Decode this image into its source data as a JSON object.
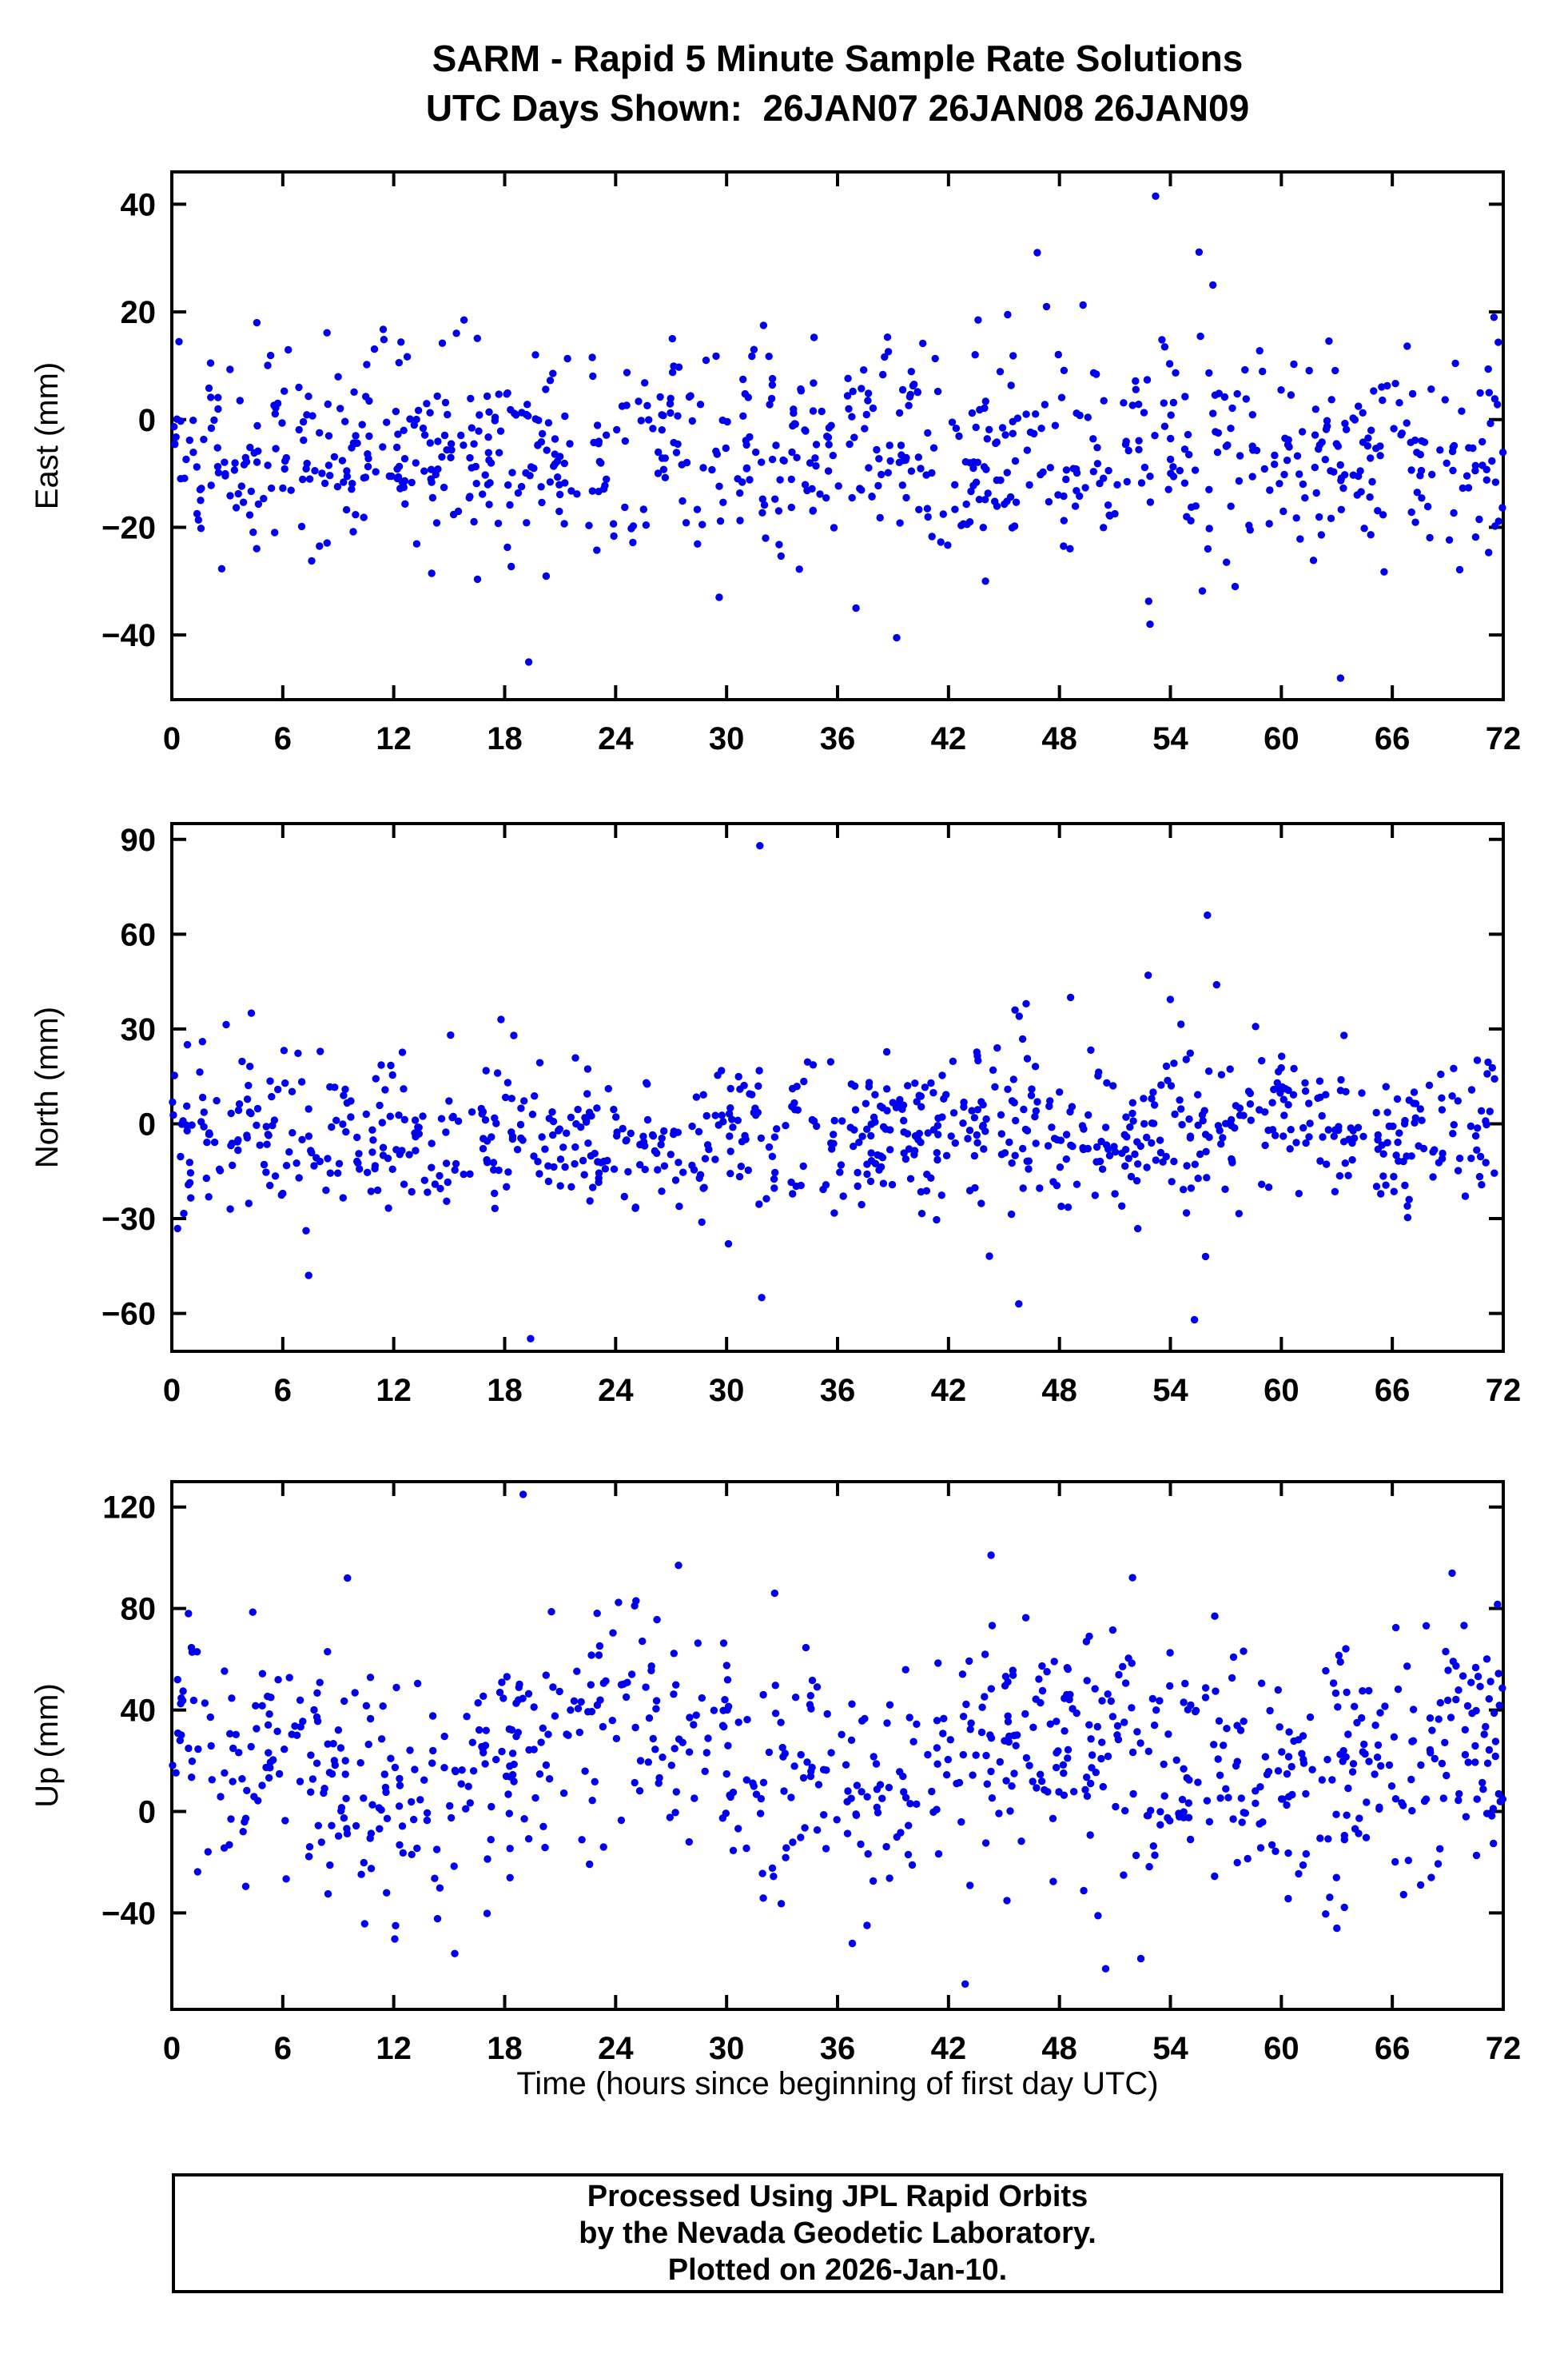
{
  "title": {
    "line1": "SARM - Rapid 5 Minute Sample Rate Solutions",
    "line2": "UTC Days Shown:  26JAN07 26JAN08 26JAN09"
  },
  "footer": {
    "line1": "Processed Using JPL Rapid Orbits",
    "line2": "by the Nevada Geodetic Laboratory.",
    "line3": "Plotted on 2026-Jan-10."
  },
  "chart_data": {
    "type": "scatter",
    "marker_color": "#0000EE",
    "frame_color": "#000000",
    "x": {
      "label": "Time (hours since beginning of first day UTC)",
      "min": 0,
      "max": 72,
      "ticks": [
        0,
        6,
        12,
        18,
        24,
        30,
        36,
        42,
        48,
        54,
        60,
        66,
        72
      ]
    },
    "panels": [
      {
        "id": "east",
        "ylabel": "East (mm)",
        "ymin": -52,
        "ymax": 46,
        "yticks": [
          -40,
          -20,
          0,
          20,
          40
        ],
        "n": 830,
        "mean": -6,
        "sd": 9.5,
        "wave_amp": 0,
        "wave_period": 24,
        "wave_phase": 0,
        "seed": 42,
        "outliers": [
          [
            53.2,
            41.5
          ],
          [
            46.8,
            31
          ],
          [
            56.3,
            25
          ],
          [
            47.3,
            21
          ],
          [
            45.2,
            19.5
          ],
          [
            15.8,
            18.5
          ],
          [
            4.6,
            18
          ],
          [
            32.0,
            17.5
          ],
          [
            71.5,
            19
          ],
          [
            43.6,
            18.5
          ],
          [
            19.3,
            -45
          ],
          [
            63.2,
            -48
          ],
          [
            52.9,
            -38
          ],
          [
            39.2,
            -40.5
          ],
          [
            29.6,
            -33
          ],
          [
            37.0,
            -35
          ],
          [
            44.0,
            -30
          ],
          [
            57.5,
            -31
          ]
        ]
      },
      {
        "id": "north",
        "ylabel": "North (mm)",
        "ymin": -72,
        "ymax": 95,
        "yticks": [
          -60,
          -30,
          0,
          30,
          60,
          90
        ],
        "n": 830,
        "mean": -3,
        "sd": 12,
        "wave_amp": 0,
        "wave_period": 24,
        "wave_phase": 0,
        "seed": 7,
        "outliers": [
          [
            31.8,
            88
          ],
          [
            56.0,
            66
          ],
          [
            52.8,
            47
          ],
          [
            56.5,
            44
          ],
          [
            46.2,
            38
          ],
          [
            4.3,
            35
          ],
          [
            17.8,
            33
          ],
          [
            48.6,
            40
          ],
          [
            45.6,
            36
          ],
          [
            19.4,
            -68
          ],
          [
            55.3,
            -62
          ],
          [
            45.8,
            -57
          ],
          [
            31.9,
            -55
          ],
          [
            7.4,
            -48
          ],
          [
            55.9,
            -42
          ],
          [
            30.1,
            -38
          ]
        ]
      },
      {
        "id": "up",
        "ylabel": "Up (mm)",
        "ymin": -78,
        "ymax": 130,
        "yticks": [
          -40,
          0,
          40,
          80,
          120
        ],
        "n": 830,
        "mean": 20,
        "sd": 24,
        "wave_amp": 10,
        "wave_period": 24,
        "wave_phase": 1.571,
        "seed": 1234,
        "outliers": [
          [
            19.0,
            125
          ],
          [
            44.3,
            101
          ],
          [
            27.4,
            97
          ],
          [
            9.5,
            92
          ],
          [
            32.6,
            86
          ],
          [
            25.1,
            83
          ],
          [
            56.4,
            77
          ],
          [
            0.9,
            78
          ],
          [
            42.9,
            -68
          ],
          [
            50.5,
            -62
          ],
          [
            15.3,
            -56
          ],
          [
            36.8,
            -52
          ],
          [
            12.1,
            -45
          ],
          [
            63.0,
            -46
          ],
          [
            52.4,
            -58
          ]
        ]
      }
    ]
  }
}
